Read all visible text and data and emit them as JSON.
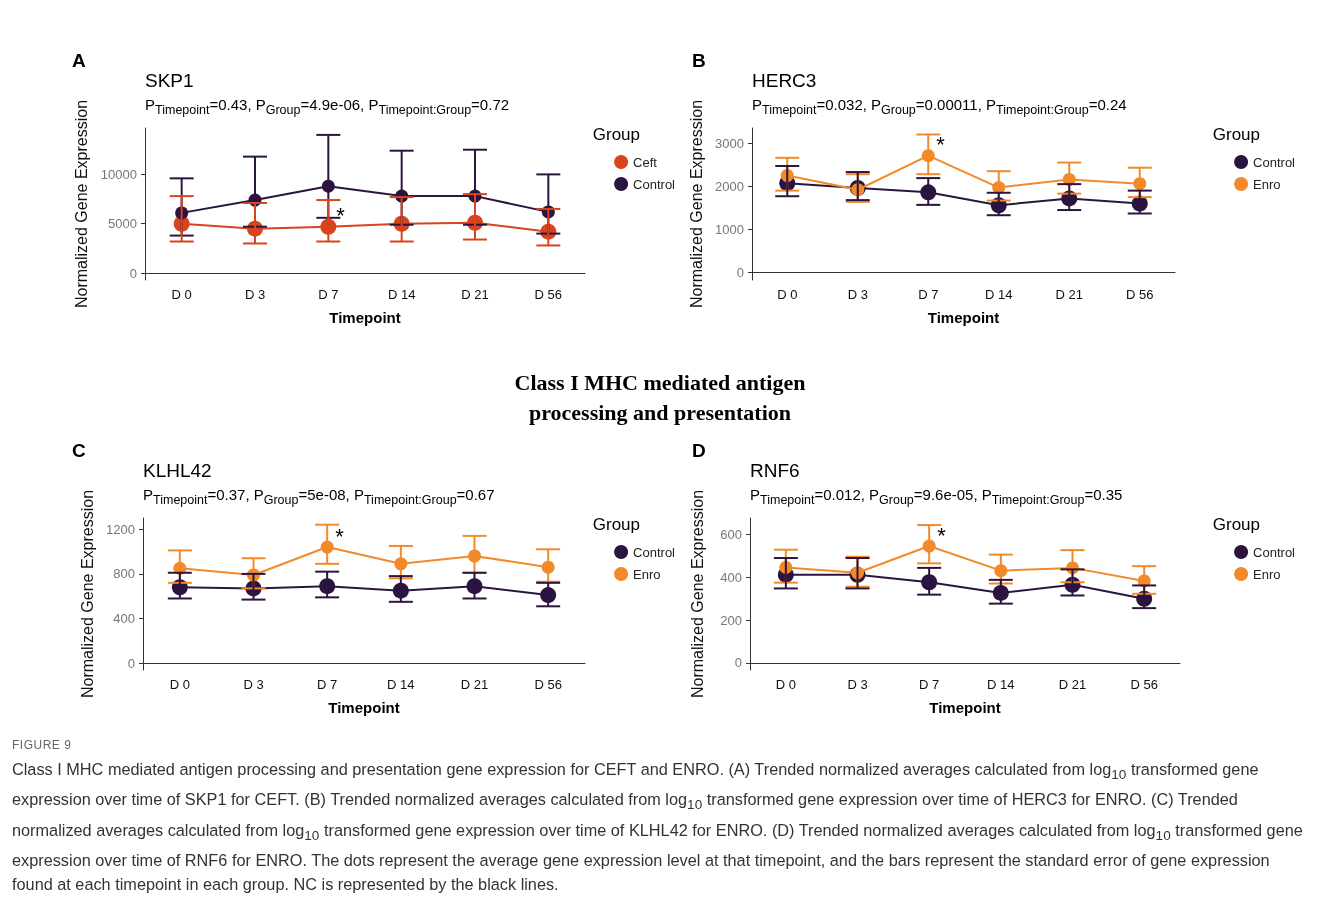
{
  "chart_data": [
    {
      "type": "line",
      "title": "SKP1",
      "subtitle": "P$_{Timepoint}$=0.43, P$_{Group}$=4.9e-06, P$_{Timepoint:Group}$=0.72",
      "xlabel": "Timepoint",
      "ylabel": "Normalized Gene Expression",
      "legend_title": "Group",
      "legend": "right",
      "marker": "circle",
      "line_style": "solid",
      "grid": false,
      "categories": [
        "D 0",
        "D 3",
        "D 7",
        "D 14",
        "D 21",
        "D 56"
      ],
      "ylim": [
        -700,
        14700
      ],
      "yticks": [
        0,
        5000,
        10000
      ],
      "series": [
        {
          "name": "Ceft",
          "color": "#d8441c",
          "values": [
            5000,
            4500,
            4700,
            5000,
            5100,
            4200
          ],
          "errors": [
            [
              3200,
              7800
            ],
            [
              3000,
              7100
            ],
            [
              3200,
              7400
            ],
            [
              3200,
              7700
            ],
            [
              3400,
              8000
            ],
            [
              2800,
              6500
            ]
          ]
        },
        {
          "name": "Control",
          "color": "#2c1440",
          "values": [
            6100,
            7400,
            8800,
            7800,
            7800,
            6200
          ],
          "errors": [
            [
              3800,
              9600
            ],
            [
              4700,
              11800
            ],
            [
              5600,
              14000
            ],
            [
              4900,
              12400
            ],
            [
              4900,
              12500
            ],
            [
              4000,
              10000
            ]
          ]
        }
      ],
      "annotations": [
        "A",
        {
          "text": "*",
          "x": "D 7",
          "y": 4700
        }
      ]
    },
    {
      "type": "line",
      "title": "HERC3",
      "subtitle": "P$_{Timepoint}$=0.032, P$_{Group}$=0.00011, P$_{Timepoint:Group}$=0.24",
      "xlabel": "Timepoint",
      "ylabel": "Normalized Gene Expression",
      "legend_title": "Group",
      "legend": "right",
      "marker": "circle",
      "line_style": "solid",
      "grid": false,
      "categories": [
        "D 0",
        "D 3",
        "D 7",
        "D 14",
        "D 21",
        "D 56"
      ],
      "ylim": [
        -170,
        3350
      ],
      "yticks": [
        0,
        1000,
        2000,
        3000
      ],
      "series": [
        {
          "name": "Control",
          "color": "#2c1440",
          "values": [
            2070,
            1960,
            1860,
            1560,
            1720,
            1600
          ],
          "errors": [
            [
              1770,
              2470
            ],
            [
              1680,
              2330
            ],
            [
              1570,
              2190
            ],
            [
              1330,
              1850
            ],
            [
              1450,
              2050
            ],
            [
              1370,
              1900
            ]
          ]
        },
        {
          "name": "Enro",
          "color": "#f28a2a",
          "values": [
            2250,
            1920,
            2710,
            1970,
            2160,
            2060
          ],
          "errors": [
            [
              1900,
              2660
            ],
            [
              1640,
              2280
            ],
            [
              2280,
              3200
            ],
            [
              1670,
              2350
            ],
            [
              1830,
              2550
            ],
            [
              1750,
              2430
            ]
          ]
        }
      ],
      "annotations": [
        "B",
        {
          "text": "*",
          "x": "D 7",
          "y": 2710
        }
      ]
    },
    {
      "type": "line",
      "title": "KLHL42",
      "subtitle": "P$_{Timepoint}$=0.37, P$_{Group}$=5e-08, P$_{Timepoint:Group}$=0.67",
      "xlabel": "Timepoint",
      "ylabel": "Normalized Gene Expression",
      "legend_title": "Group",
      "legend": "right",
      "marker": "circle",
      "line_style": "solid",
      "grid": false,
      "categories": [
        "D 0",
        "D 3",
        "D 7",
        "D 14",
        "D 21",
        "D 56"
      ],
      "ylim": [
        -60,
        1300
      ],
      "yticks": [
        0,
        400,
        800,
        1200
      ],
      "series": [
        {
          "name": "Control",
          "color": "#2c1440",
          "values": [
            680,
            670,
            690,
            650,
            690,
            610
          ],
          "errors": [
            [
              580,
              810
            ],
            [
              570,
              800
            ],
            [
              590,
              820
            ],
            [
              550,
              780
            ],
            [
              580,
              810
            ],
            [
              510,
              720
            ]
          ]
        },
        {
          "name": "Enro",
          "color": "#f28a2a",
          "values": [
            850,
            790,
            1040,
            890,
            960,
            860
          ],
          "errors": [
            [
              720,
              1010
            ],
            [
              670,
              940
            ],
            [
              890,
              1240
            ],
            [
              760,
              1050
            ],
            [
              810,
              1140
            ],
            [
              730,
              1020
            ]
          ]
        }
      ],
      "annotations": [
        "C",
        {
          "text": "*",
          "x": "D 7",
          "y": 1040
        },
        "Class I MHC mediated antigen processing and presentation"
      ]
    },
    {
      "type": "line",
      "title": "RNF6",
      "subtitle": "P$_{Timepoint}$=0.012, P$_{Group}$=9.6e-05, P$_{Timepoint:Group}$=0.35",
      "xlabel": "Timepoint",
      "ylabel": "Normalized Gene Expression",
      "legend_title": "Group",
      "legend": "right",
      "marker": "circle",
      "line_style": "solid",
      "grid": false,
      "categories": [
        "D 0",
        "D 3",
        "D 7",
        "D 14",
        "D 21",
        "D 56"
      ],
      "ylim": [
        -33,
        677
      ],
      "yticks": [
        0,
        200,
        400,
        600
      ],
      "series": [
        {
          "name": "Control",
          "color": "#2c1440",
          "values": [
            412,
            412,
            377,
            327,
            365,
            300
          ],
          "errors": [
            [
              348,
              490
            ],
            [
              348,
              490
            ],
            [
              319,
              444
            ],
            [
              277,
              388
            ],
            [
              315,
              437
            ],
            [
              256,
              362
            ]
          ]
        },
        {
          "name": "Enro",
          "color": "#f28a2a",
          "values": [
            446,
            421,
            546,
            431,
            444,
            383
          ],
          "errors": [
            [
              375,
              529
            ],
            [
              356,
              496
            ],
            [
              465,
              644
            ],
            [
              371,
              506
            ],
            [
              377,
              527
            ],
            [
              323,
              452
            ]
          ]
        }
      ],
      "annotations": [
        "D",
        {
          "text": "*",
          "x": "D 7",
          "y": 546
        },
        "FIGURE 9",
        "Class I MHC mediated antigen processing and presentation gene expression for CEFT and ENRO. (A) Trended normalized averages calculated from log$_{10}$ transformed gene expression over time of SKP1 for CEFT. (B) Trended normalized averages calculated from log$_{10}$ transformed gene expression over time of HERC3 for ENRO. (C) Trended normalized averages calculated from log$_{10}$ transformed gene expression over time of KLHL42 for ENRO. (D) Trended normalized averages calculated from log$_{10}$ transformed gene expression over time of RNF6 for ENRO. The dots represent the average gene expression level at that timepoint, and the bars represent the standard error of gene expression found at each timepoint in each group. NC is represented by the black lines."
      ]
    }
  ]
}
